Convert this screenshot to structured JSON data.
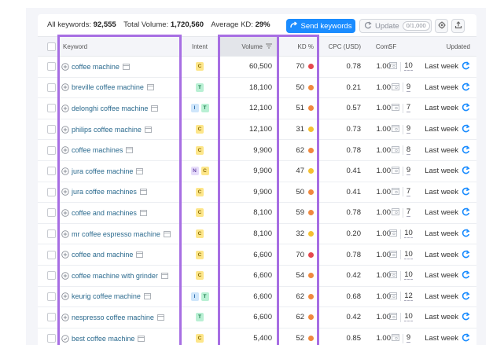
{
  "summary": {
    "all_keywords_label": "All keywords:",
    "all_keywords_value": "92,555",
    "total_volume_label": "Total Volume:",
    "total_volume_value": "1,720,560",
    "avg_kd_label": "Average KD:",
    "avg_kd_value": "29%"
  },
  "toolbar": {
    "send_label": "Send keywords",
    "update_label": "Update",
    "update_badge": "0/1,000"
  },
  "columns": {
    "keyword": "Keyword",
    "intent": "Intent",
    "volume": "Volume",
    "kd": "KD %",
    "cpc": "CPC (USD)",
    "com": "Com.",
    "sf": "SF",
    "updated": "Updated"
  },
  "colors": {
    "accent": "#1a8cff",
    "highlight": "#a76ee3",
    "kd_red": "#e5484d",
    "kd_orange": "#f0883e",
    "kd_yellow": "#f5c030",
    "link": "#2b6a8e"
  },
  "rows": [
    {
      "keyword": "coffee machine",
      "icon": "plus-circle",
      "intent": [
        "C"
      ],
      "volume": "60,500",
      "kd": "70",
      "kd_color": "#e5484d",
      "cpc": "0.78",
      "com": "1.00",
      "sf": "10",
      "updated": "Last week"
    },
    {
      "keyword": "breville coffee machine",
      "icon": "plus-circle",
      "intent": [
        "T"
      ],
      "volume": "18,100",
      "kd": "50",
      "kd_color": "#f0883e",
      "cpc": "0.21",
      "com": "1.00",
      "sf": "9",
      "updated": "Last week"
    },
    {
      "keyword": "delonghi coffee machine",
      "icon": "plus-circle",
      "intent": [
        "I",
        "T"
      ],
      "volume": "12,100",
      "kd": "51",
      "kd_color": "#f0883e",
      "cpc": "0.57",
      "com": "1.00",
      "sf": "7",
      "updated": "Last week"
    },
    {
      "keyword": "philips coffee machine",
      "icon": "plus-circle",
      "intent": [
        "C"
      ],
      "volume": "12,100",
      "kd": "31",
      "kd_color": "#f5c030",
      "cpc": "0.73",
      "com": "1.00",
      "sf": "9",
      "updated": "Last week"
    },
    {
      "keyword": "coffee machines",
      "icon": "plus-circle",
      "intent": [
        "C"
      ],
      "volume": "9,900",
      "kd": "62",
      "kd_color": "#f0883e",
      "cpc": "0.78",
      "com": "1.00",
      "sf": "8",
      "updated": "Last week"
    },
    {
      "keyword": "jura coffee machine",
      "icon": "plus-circle",
      "intent": [
        "N",
        "C"
      ],
      "volume": "9,900",
      "kd": "47",
      "kd_color": "#f5c030",
      "cpc": "0.41",
      "com": "1.00",
      "sf": "9",
      "updated": "Last week"
    },
    {
      "keyword": "jura coffee machines",
      "icon": "plus-circle",
      "intent": [
        "C"
      ],
      "volume": "9,900",
      "kd": "50",
      "kd_color": "#f0883e",
      "cpc": "0.41",
      "com": "1.00",
      "sf": "7",
      "updated": "Last week"
    },
    {
      "keyword": "coffee and machines",
      "icon": "plus-circle",
      "intent": [
        "C"
      ],
      "volume": "8,100",
      "kd": "59",
      "kd_color": "#f0883e",
      "cpc": "0.78",
      "com": "1.00",
      "sf": "7",
      "updated": "Last week"
    },
    {
      "keyword": "mr coffee espresso machine",
      "icon": "plus-circle",
      "intent": [
        "C"
      ],
      "volume": "8,100",
      "kd": "32",
      "kd_color": "#f5c030",
      "cpc": "0.20",
      "com": "1.00",
      "sf": "10",
      "updated": "Last week"
    },
    {
      "keyword": "coffee and machine",
      "icon": "plus-circle",
      "intent": [
        "C"
      ],
      "volume": "6,600",
      "kd": "70",
      "kd_color": "#e5484d",
      "cpc": "0.78",
      "com": "1.00",
      "sf": "10",
      "updated": "Last week"
    },
    {
      "keyword": "coffee machine with grinder",
      "icon": "plus-circle",
      "intent": [
        "C"
      ],
      "volume": "6,600",
      "kd": "54",
      "kd_color": "#f0883e",
      "cpc": "0.42",
      "com": "1.00",
      "sf": "10",
      "updated": "Last week"
    },
    {
      "keyword": "keurig coffee machine",
      "icon": "plus-circle",
      "intent": [
        "I",
        "T"
      ],
      "volume": "6,600",
      "kd": "62",
      "kd_color": "#f0883e",
      "cpc": "0.68",
      "com": "1.00",
      "sf": "12",
      "updated": "Last week"
    },
    {
      "keyword": "nespresso coffee machine",
      "icon": "plus-circle",
      "intent": [
        "T"
      ],
      "volume": "6,600",
      "kd": "62",
      "kd_color": "#f0883e",
      "cpc": "0.42",
      "com": "1.00",
      "sf": "10",
      "updated": "Last week"
    },
    {
      "keyword": "best coffee machine",
      "icon": "check-circle",
      "intent": [
        "C"
      ],
      "volume": "5,400",
      "kd": "52",
      "kd_color": "#f0883e",
      "cpc": "0.85",
      "com": "1.00",
      "sf": "9",
      "updated": "Last week"
    }
  ]
}
